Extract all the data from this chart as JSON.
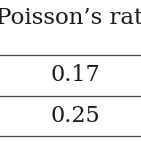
{
  "header": "Poisson’s ratio",
  "rows": [
    "0.17",
    "0.25"
  ],
  "bg_color": "#ffffff",
  "text_color": "#1a1a1a",
  "header_fontsize": 16.5,
  "cell_fontsize": 16.0,
  "line_color": "#444444",
  "line_width": 0.9
}
